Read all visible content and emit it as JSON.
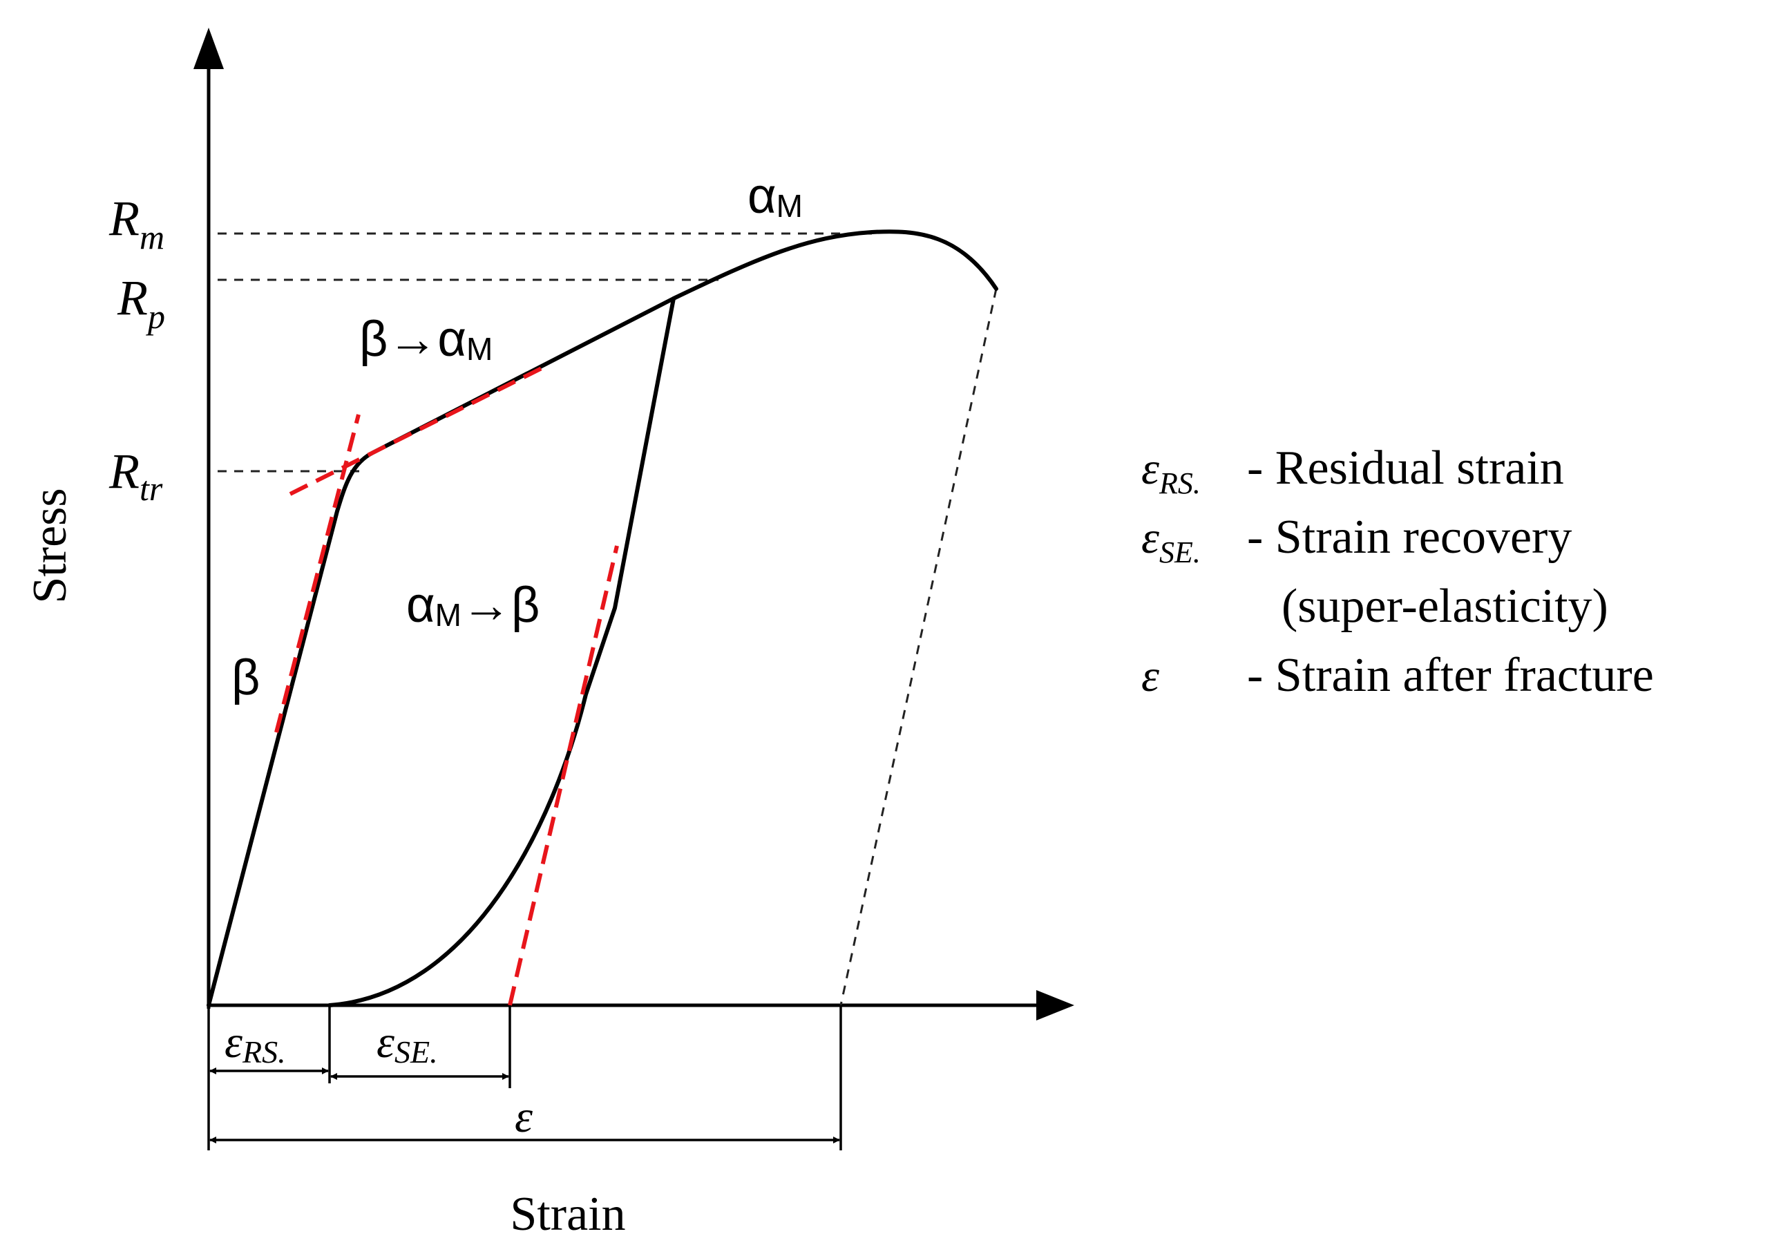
{
  "axes": {
    "x_label": "Strain",
    "y_label": "Stress"
  },
  "stress_levels": {
    "rm": {
      "base": "R",
      "sub": "m"
    },
    "rp": {
      "base": "R",
      "sub": "p"
    },
    "rtr": {
      "base": "R",
      "sub": "tr"
    }
  },
  "phase_labels": {
    "martensite": {
      "base": "α",
      "sub": "M"
    },
    "transformation_forward": {
      "lead": "β→α",
      "sub": "M"
    },
    "transformation_reverse": {
      "lead": "α",
      "sub": "M",
      "tail": "→β"
    },
    "beta": "β"
  },
  "strain_markers": {
    "residual": {
      "base": "ε",
      "sub": "RS."
    },
    "recovery": {
      "base": "ε",
      "sub": "SE."
    },
    "total": "ε"
  },
  "legend": {
    "items": [
      {
        "symbol": "ε",
        "sub": "RS.",
        "text": "- Residual strain",
        "continuation": ""
      },
      {
        "symbol": "ε",
        "sub": "SE.",
        "text": "- Strain recovery",
        "continuation": "(super-elasticity)"
      },
      {
        "symbol": "ε",
        "sub": "",
        "text": "- Strain after fracture",
        "continuation": ""
      }
    ]
  },
  "colors": {
    "curve": "#000000",
    "tangent_lines": "#e8151b",
    "guide_lines": "#222222"
  }
}
